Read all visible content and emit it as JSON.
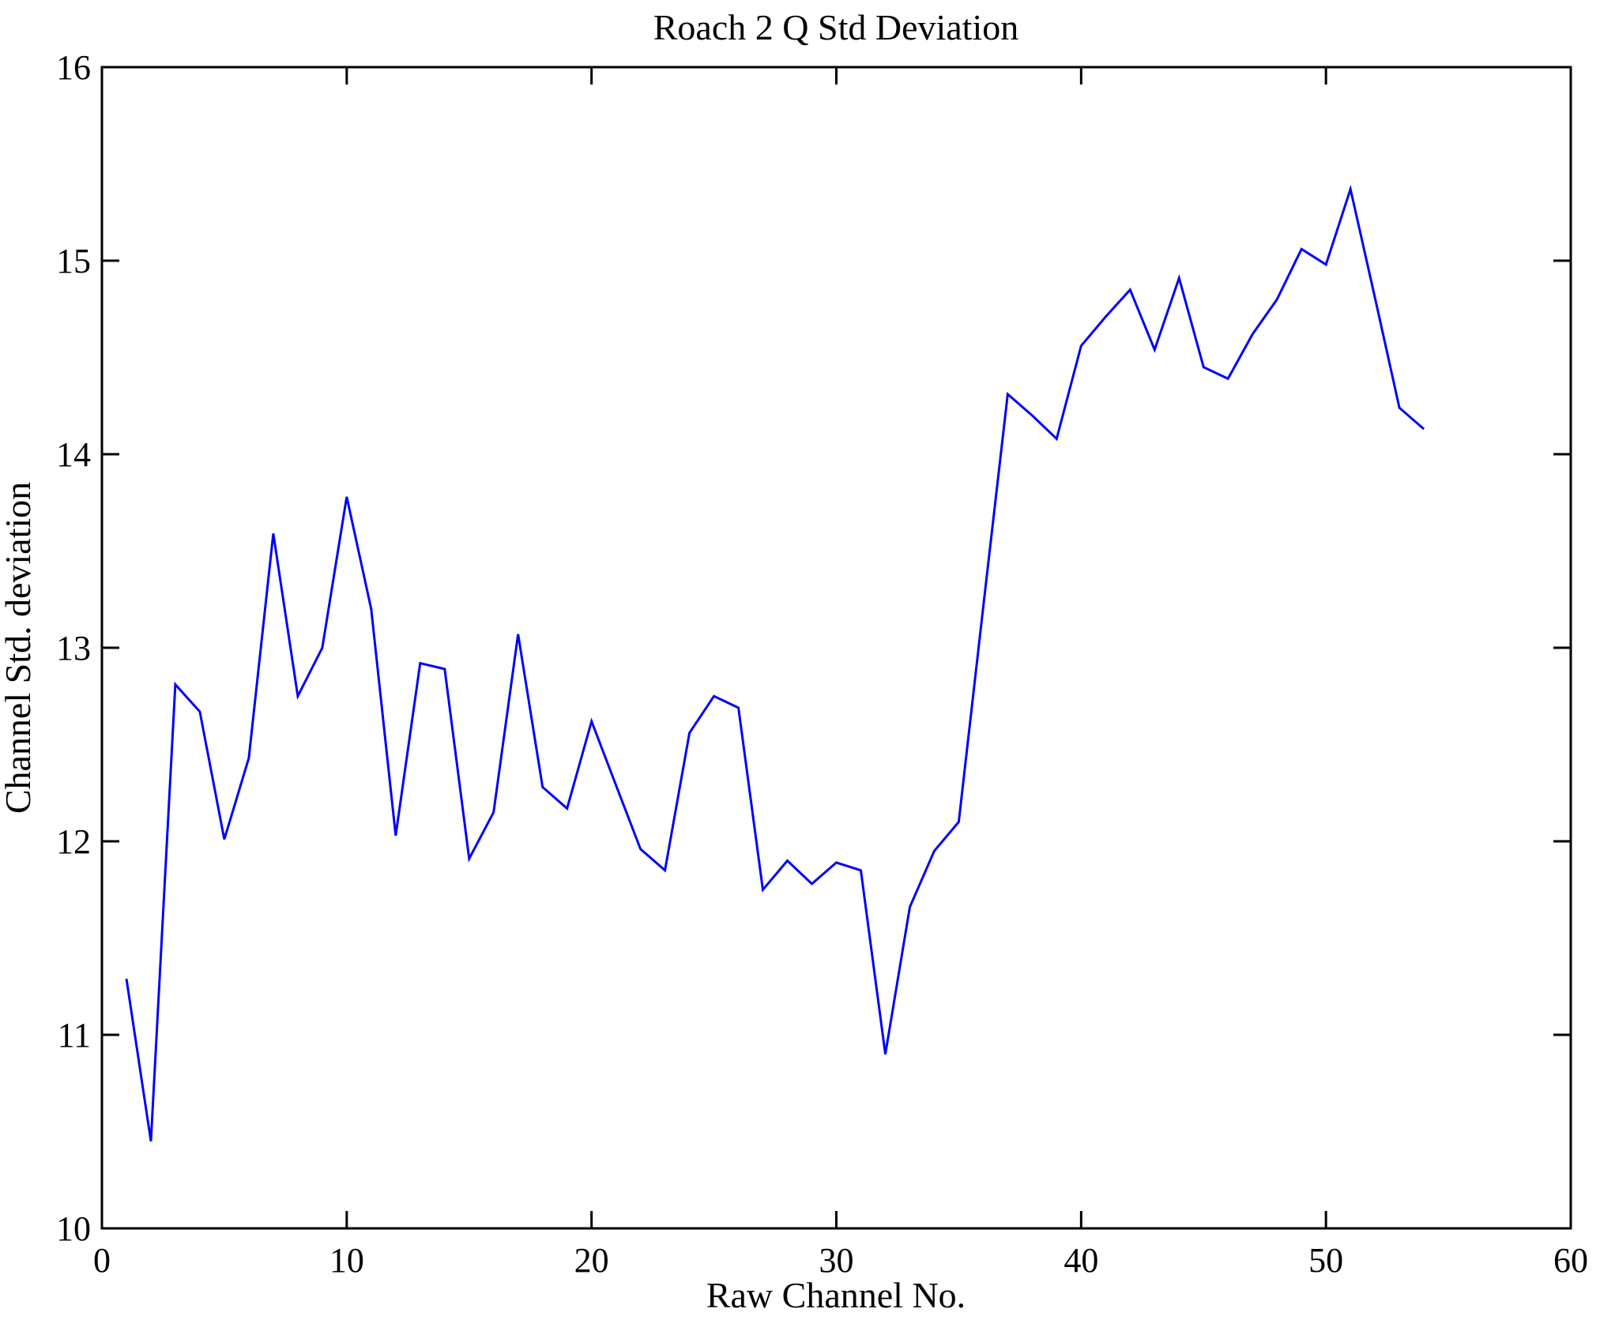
{
  "figure": {
    "background": "#ffffff",
    "axis_color": "#000000"
  },
  "chart_data": {
    "type": "line",
    "title": "Roach 2 Q Std Deviation",
    "xlabel": "Raw Channel No.",
    "ylabel": "Channel Std. deviation",
    "xlim": [
      0,
      60
    ],
    "ylim": [
      10,
      16
    ],
    "xticks": [
      0,
      10,
      20,
      30,
      40,
      50,
      60
    ],
    "yticks": [
      10,
      11,
      12,
      13,
      14,
      15,
      16
    ],
    "grid": false,
    "legend_position": "none",
    "line_color": "#0000ff",
    "x": [
      1,
      2,
      3,
      4,
      5,
      6,
      7,
      8,
      9,
      10,
      11,
      12,
      13,
      14,
      15,
      16,
      17,
      18,
      19,
      20,
      21,
      22,
      23,
      24,
      25,
      26,
      27,
      28,
      29,
      30,
      31,
      32,
      33,
      34,
      35,
      36,
      37,
      38,
      39,
      40,
      41,
      42,
      43,
      44,
      45,
      46,
      47,
      48,
      49,
      50,
      51,
      52,
      53,
      54
    ],
    "values": [
      11.29,
      10.45,
      12.81,
      12.67,
      12.01,
      12.43,
      13.59,
      12.75,
      13.0,
      13.78,
      13.2,
      12.03,
      12.92,
      12.89,
      11.91,
      12.15,
      13.07,
      12.28,
      12.17,
      12.62,
      12.29,
      11.96,
      11.85,
      12.56,
      12.75,
      12.69,
      11.75,
      11.9,
      11.78,
      11.89,
      11.85,
      10.9,
      11.66,
      11.95,
      12.1,
      13.21,
      14.31,
      14.2,
      14.08,
      14.56,
      14.71,
      14.85,
      14.54,
      14.91,
      14.45,
      14.39,
      14.62,
      14.8,
      15.06,
      14.98,
      15.37,
      14.81,
      14.24,
      14.13
    ]
  }
}
